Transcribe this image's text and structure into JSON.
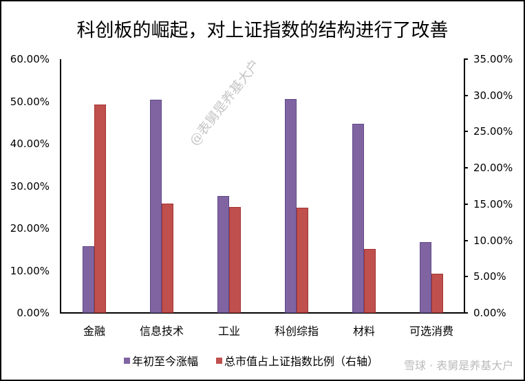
{
  "chart_data": {
    "type": "bar",
    "title": "科创板的崛起，对上证指数的结构进行了改善",
    "categories": [
      "金融",
      "信息技术",
      "工业",
      "科创综指",
      "材料",
      "可选消费"
    ],
    "series": [
      {
        "name": "年初至今涨幅",
        "axis": "left",
        "color": "#8064a2",
        "values": [
          0.158,
          0.504,
          0.276,
          0.506,
          0.447,
          0.167
        ]
      },
      {
        "name": "总市值占上证指数比例（右轴）",
        "axis": "right",
        "color": "#c0504d",
        "values": [
          0.287,
          0.151,
          0.146,
          0.145,
          0.088,
          0.054
        ]
      }
    ],
    "xlabel": "",
    "ylabel": "",
    "ylim": [
      0,
      0.6
    ],
    "ylim_right": [
      0,
      0.35
    ],
    "yticks_left": [
      "0.00%",
      "10.00%",
      "20.00%",
      "30.00%",
      "40.00%",
      "50.00%",
      "60.00%"
    ],
    "yticks_right": [
      "0.00%",
      "5.00%",
      "10.00%",
      "15.00%",
      "20.00%",
      "25.00%",
      "30.00%",
      "35.00%"
    ],
    "grid": false,
    "legend_position": "bottom"
  },
  "legend": {
    "s1": "年初至今涨幅",
    "s2": "总市值占上证指数比例（右轴）"
  },
  "watermarks": {
    "diagonal": "@表舅是养基大户",
    "bottom": "雪球 · 表舅是养基大户"
  },
  "colors": {
    "series1": "#8064a2",
    "series2": "#c0504d"
  }
}
